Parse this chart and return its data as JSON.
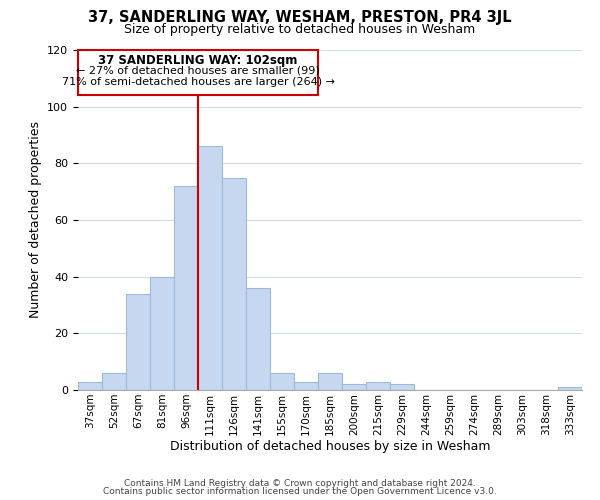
{
  "title": "37, SANDERLING WAY, WESHAM, PRESTON, PR4 3JL",
  "subtitle": "Size of property relative to detached houses in Wesham",
  "xlabel": "Distribution of detached houses by size in Wesham",
  "ylabel": "Number of detached properties",
  "bar_labels": [
    "37sqm",
    "52sqm",
    "67sqm",
    "81sqm",
    "96sqm",
    "111sqm",
    "126sqm",
    "141sqm",
    "155sqm",
    "170sqm",
    "185sqm",
    "200sqm",
    "215sqm",
    "229sqm",
    "244sqm",
    "259sqm",
    "274sqm",
    "289sqm",
    "303sqm",
    "318sqm",
    "333sqm"
  ],
  "bar_values": [
    3,
    6,
    34,
    40,
    72,
    86,
    75,
    36,
    6,
    3,
    6,
    2,
    3,
    2,
    0,
    0,
    0,
    0,
    0,
    0,
    1
  ],
  "bar_color": "#c5d8f0",
  "bar_edge_color": "#a0b8d8",
  "vline_x": 4.5,
  "vline_color": "#cc0000",
  "ylim": [
    0,
    120
  ],
  "yticks": [
    0,
    20,
    40,
    60,
    80,
    100,
    120
  ],
  "annotation_title": "37 SANDERLING WAY: 102sqm",
  "annotation_line1": "← 27% of detached houses are smaller (99)",
  "annotation_line2": "71% of semi-detached houses are larger (264) →",
  "annotation_box_color": "#ffffff",
  "annotation_box_edge": "#cc0000",
  "footer_line1": "Contains HM Land Registry data © Crown copyright and database right 2024.",
  "footer_line2": "Contains public sector information licensed under the Open Government Licence v3.0.",
  "background_color": "#ffffff",
  "grid_color": "#d0dce8"
}
